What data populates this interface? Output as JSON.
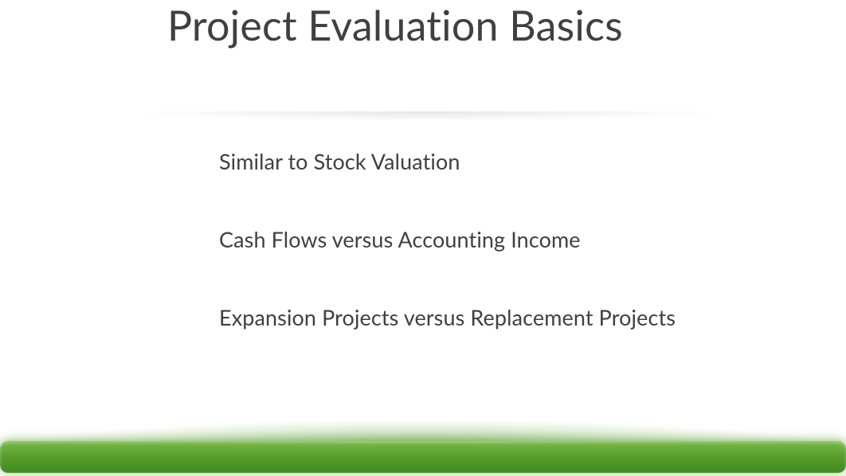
{
  "slide": {
    "title": "Project Evaluation Basics",
    "title_color": "#404040",
    "title_fontsize": 52,
    "bullets": [
      "Similar to Stock Valuation",
      "Cash Flows versus Accounting Income",
      "Expansion Projects versus Replacement Projects"
    ],
    "bullet_color": "#404040",
    "bullet_fontsize": 27,
    "background_color": "#ffffff",
    "accent_bar": {
      "gradient_top": "#7ab94a",
      "gradient_mid": "#5aa02e",
      "gradient_bottom": "#3f8a1e",
      "glow_color": "#529c28"
    },
    "underline_shadow_color": "rgba(0,0,0,0.10)"
  }
}
